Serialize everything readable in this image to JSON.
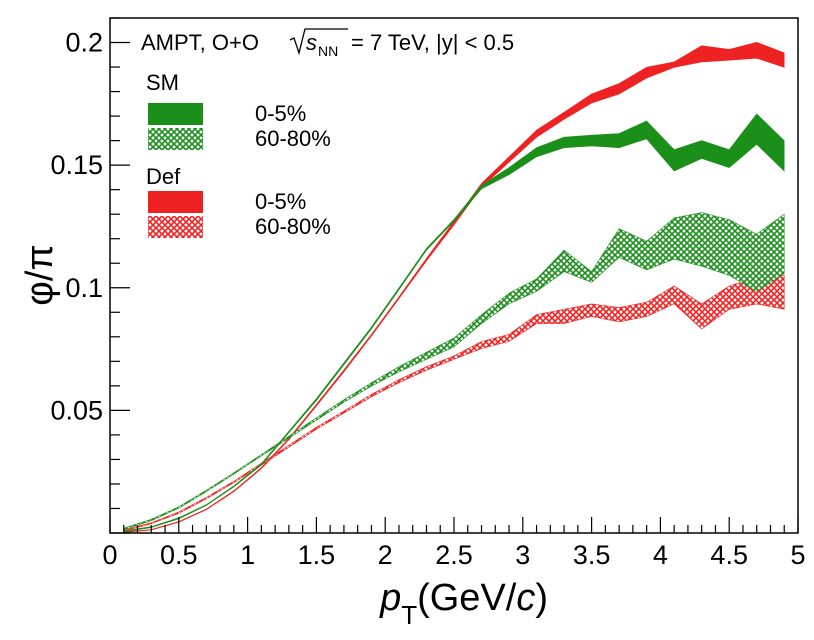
{
  "chart_data": {
    "type": "area",
    "title": "AMPT, O+O",
    "title_energy_symbol": "s",
    "title_energy_subscript": "NN",
    "title_energy_value": "= 7 TeV, |y| < 0.5",
    "xlabel_main": "p",
    "xlabel_sub": "T",
    "xlabel_units": "(GeV/",
    "xlabel_c": "c",
    "xlabel_close": ")",
    "ylabel": "φ/π",
    "xlim": [
      0,
      5
    ],
    "ylim": [
      0,
      0.21
    ],
    "x_ticks": [
      "0",
      "0.5",
      "1",
      "1.5",
      "2",
      "2.5",
      "3",
      "3.5",
      "4",
      "4.5",
      "5"
    ],
    "y_ticks": [
      "0.05",
      "0.1",
      "0.15",
      "0.2"
    ],
    "legend_groups": [
      {
        "label": "SM",
        "entries": [
          {
            "label": "0-5%",
            "series": 0
          },
          {
            "label": "60-80%",
            "series": 1
          }
        ]
      },
      {
        "label": "Def",
        "entries": [
          {
            "label": "0-5%",
            "series": 2
          },
          {
            "label": "60-80%",
            "series": 3
          }
        ]
      }
    ],
    "series": [
      {
        "name": "SM 0-5%",
        "color": "#1a8f1a",
        "pattern": "solid",
        "x": [
          0.1,
          0.3,
          0.5,
          0.7,
          0.9,
          1.1,
          1.3,
          1.5,
          1.7,
          1.9,
          2.1,
          2.3,
          2.5,
          2.7,
          2.9,
          3.1,
          3.3,
          3.5,
          3.7,
          3.9,
          4.1,
          4.3,
          4.5,
          4.7,
          4.9
        ],
        "low": [
          0.0004,
          0.0022,
          0.0058,
          0.0112,
          0.0188,
          0.0277,
          0.0409,
          0.054,
          0.0686,
          0.0832,
          0.0992,
          0.1153,
          0.1271,
          0.1403,
          0.1461,
          0.1534,
          0.1571,
          0.1578,
          0.1571,
          0.1607,
          0.1476,
          0.1527,
          0.149,
          0.1585,
          0.1476
        ],
        "high": [
          0.0008,
          0.0026,
          0.0062,
          0.0116,
          0.0192,
          0.0283,
          0.0415,
          0.0548,
          0.0694,
          0.084,
          0.1,
          0.1161,
          0.1279,
          0.1418,
          0.149,
          0.1571,
          0.1614,
          0.1622,
          0.1629,
          0.168,
          0.1563,
          0.16,
          0.1563,
          0.1709,
          0.16
        ]
      },
      {
        "name": "SM 60-80%",
        "color": "#1a8f1a",
        "pattern": "hatch",
        "x": [
          0.1,
          0.3,
          0.5,
          0.7,
          0.9,
          1.1,
          1.3,
          1.5,
          1.7,
          1.9,
          2.1,
          2.3,
          2.5,
          2.7,
          2.9,
          3.1,
          3.3,
          3.5,
          3.7,
          3.9,
          4.1,
          4.3,
          4.5,
          4.7,
          4.9
        ],
        "low": [
          0.0014,
          0.005,
          0.0101,
          0.0168,
          0.024,
          0.0314,
          0.0387,
          0.046,
          0.0533,
          0.0599,
          0.0657,
          0.0708,
          0.0759,
          0.0854,
          0.0934,
          0.0985,
          0.1066,
          0.1022,
          0.1124,
          0.1073,
          0.1117,
          0.1088,
          0.1051,
          0.0985,
          0.1058
        ],
        "high": [
          0.002,
          0.0056,
          0.0107,
          0.0174,
          0.0246,
          0.032,
          0.0395,
          0.047,
          0.0543,
          0.0613,
          0.0678,
          0.0737,
          0.0795,
          0.089,
          0.0978,
          0.1036,
          0.1153,
          0.1066,
          0.1241,
          0.119,
          0.1285,
          0.1307,
          0.1278,
          0.1219,
          0.13
        ]
      },
      {
        "name": "Def 0-5%",
        "color": "#ee2222",
        "pattern": "solid",
        "x": [
          0.1,
          0.3,
          0.5,
          0.7,
          0.9,
          1.1,
          1.3,
          1.5,
          1.7,
          1.9,
          2.1,
          2.3,
          2.5,
          2.7,
          2.9,
          3.1,
          3.3,
          3.5,
          3.7,
          3.9,
          4.1,
          4.3,
          4.5,
          4.7,
          4.9
        ],
        "low": [
          0.0002,
          0.0012,
          0.0044,
          0.0095,
          0.0168,
          0.0262,
          0.038,
          0.0518,
          0.0657,
          0.0803,
          0.0956,
          0.111,
          0.1256,
          0.141,
          0.1512,
          0.1614,
          0.1687,
          0.1753,
          0.179,
          0.1855,
          0.1899,
          0.1921,
          0.1928,
          0.1936,
          0.1899
        ],
        "high": [
          0.0004,
          0.0014,
          0.0047,
          0.0098,
          0.0172,
          0.0267,
          0.0386,
          0.0525,
          0.0665,
          0.081,
          0.0963,
          0.112,
          0.1271,
          0.1425,
          0.1534,
          0.1643,
          0.1716,
          0.179,
          0.1833,
          0.1899,
          0.1921,
          0.1987,
          0.1972,
          0.2001,
          0.1958
        ]
      },
      {
        "name": "Def 60-80%",
        "color": "#ee2222",
        "pattern": "hatch",
        "x": [
          0.1,
          0.3,
          0.5,
          0.7,
          0.9,
          1.1,
          1.3,
          1.5,
          1.7,
          1.9,
          2.1,
          2.3,
          2.5,
          2.7,
          2.9,
          3.1,
          3.3,
          3.5,
          3.7,
          3.9,
          4.1,
          4.3,
          4.5,
          4.7,
          4.9
        ],
        "low": [
          0.0008,
          0.0038,
          0.008,
          0.0139,
          0.0205,
          0.0277,
          0.035,
          0.0423,
          0.0489,
          0.0555,
          0.0613,
          0.0664,
          0.0708,
          0.0752,
          0.0781,
          0.0854,
          0.0854,
          0.0883,
          0.0861,
          0.0883,
          0.0934,
          0.0832,
          0.0912,
          0.0934,
          0.0912
        ],
        "high": [
          0.0012,
          0.0042,
          0.0086,
          0.0145,
          0.0211,
          0.0285,
          0.0358,
          0.0431,
          0.0497,
          0.0565,
          0.0625,
          0.0678,
          0.0722,
          0.0781,
          0.081,
          0.089,
          0.0912,
          0.0934,
          0.0919,
          0.0941,
          0.1007,
          0.0934,
          0.1007,
          0.1044,
          0.1051
        ]
      }
    ]
  }
}
